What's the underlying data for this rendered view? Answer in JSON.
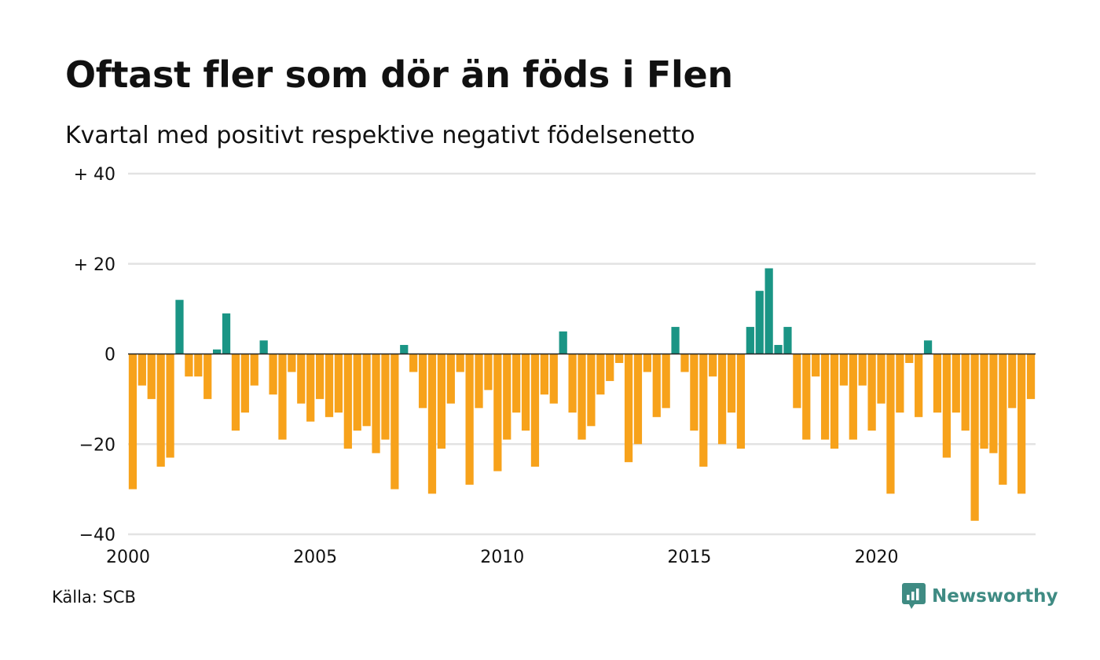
{
  "chart_data": {
    "type": "bar",
    "title": "Oftast fler som dör än föds i Flen",
    "subtitle": "Kvartal med positivt respektive negativt födelsenetto",
    "xlabel": "",
    "ylabel": "",
    "ylim": [
      -40,
      40
    ],
    "yticks": [
      {
        "value": 40,
        "label": "+ 40"
      },
      {
        "value": 20,
        "label": "+ 20"
      },
      {
        "value": 0,
        "label": "0"
      },
      {
        "value": -20,
        "label": "−20"
      },
      {
        "value": -40,
        "label": "−40"
      }
    ],
    "xticks": [
      {
        "value": 2000,
        "label": "2000"
      },
      {
        "value": 2005,
        "label": "2005"
      },
      {
        "value": 2010,
        "label": "2010"
      },
      {
        "value": 2015,
        "label": "2015"
      },
      {
        "value": 2020,
        "label": "2020"
      }
    ],
    "x_start": 2000,
    "periods_per_year": 4,
    "grid": true,
    "legend": "none",
    "colors": {
      "positive": "#1a9585",
      "negative": "#f7a21b",
      "grid": "#e3e3e3",
      "zero_line": "#222222"
    },
    "values": [
      -30,
      -7,
      -10,
      -25,
      -23,
      12,
      -5,
      -5,
      -10,
      1,
      9,
      -17,
      -13,
      -7,
      3,
      -9,
      -19,
      -4,
      -11,
      -15,
      -10,
      -14,
      -13,
      -21,
      -17,
      -16,
      -22,
      -19,
      -30,
      2,
      -4,
      -12,
      -31,
      -21,
      -11,
      -4,
      -29,
      -12,
      -8,
      -26,
      -19,
      -13,
      -17,
      -25,
      -9,
      -11,
      5,
      -13,
      -19,
      -16,
      -9,
      -6,
      -2,
      -24,
      -20,
      -4,
      -14,
      -12,
      6,
      -4,
      -17,
      -25,
      -5,
      -20,
      -13,
      -21,
      6,
      14,
      19,
      2,
      6,
      -12,
      -19,
      -5,
      -19,
      -21,
      -7,
      -19,
      -7,
      -17,
      -11,
      -31,
      -13,
      -2,
      -14,
      3,
      -13,
      -23,
      -13,
      -17,
      -37,
      -21,
      -22,
      -29,
      -12,
      -31,
      -10
    ]
  },
  "footer": {
    "source": "Källa: SCB",
    "brand": "Newsworthy"
  }
}
